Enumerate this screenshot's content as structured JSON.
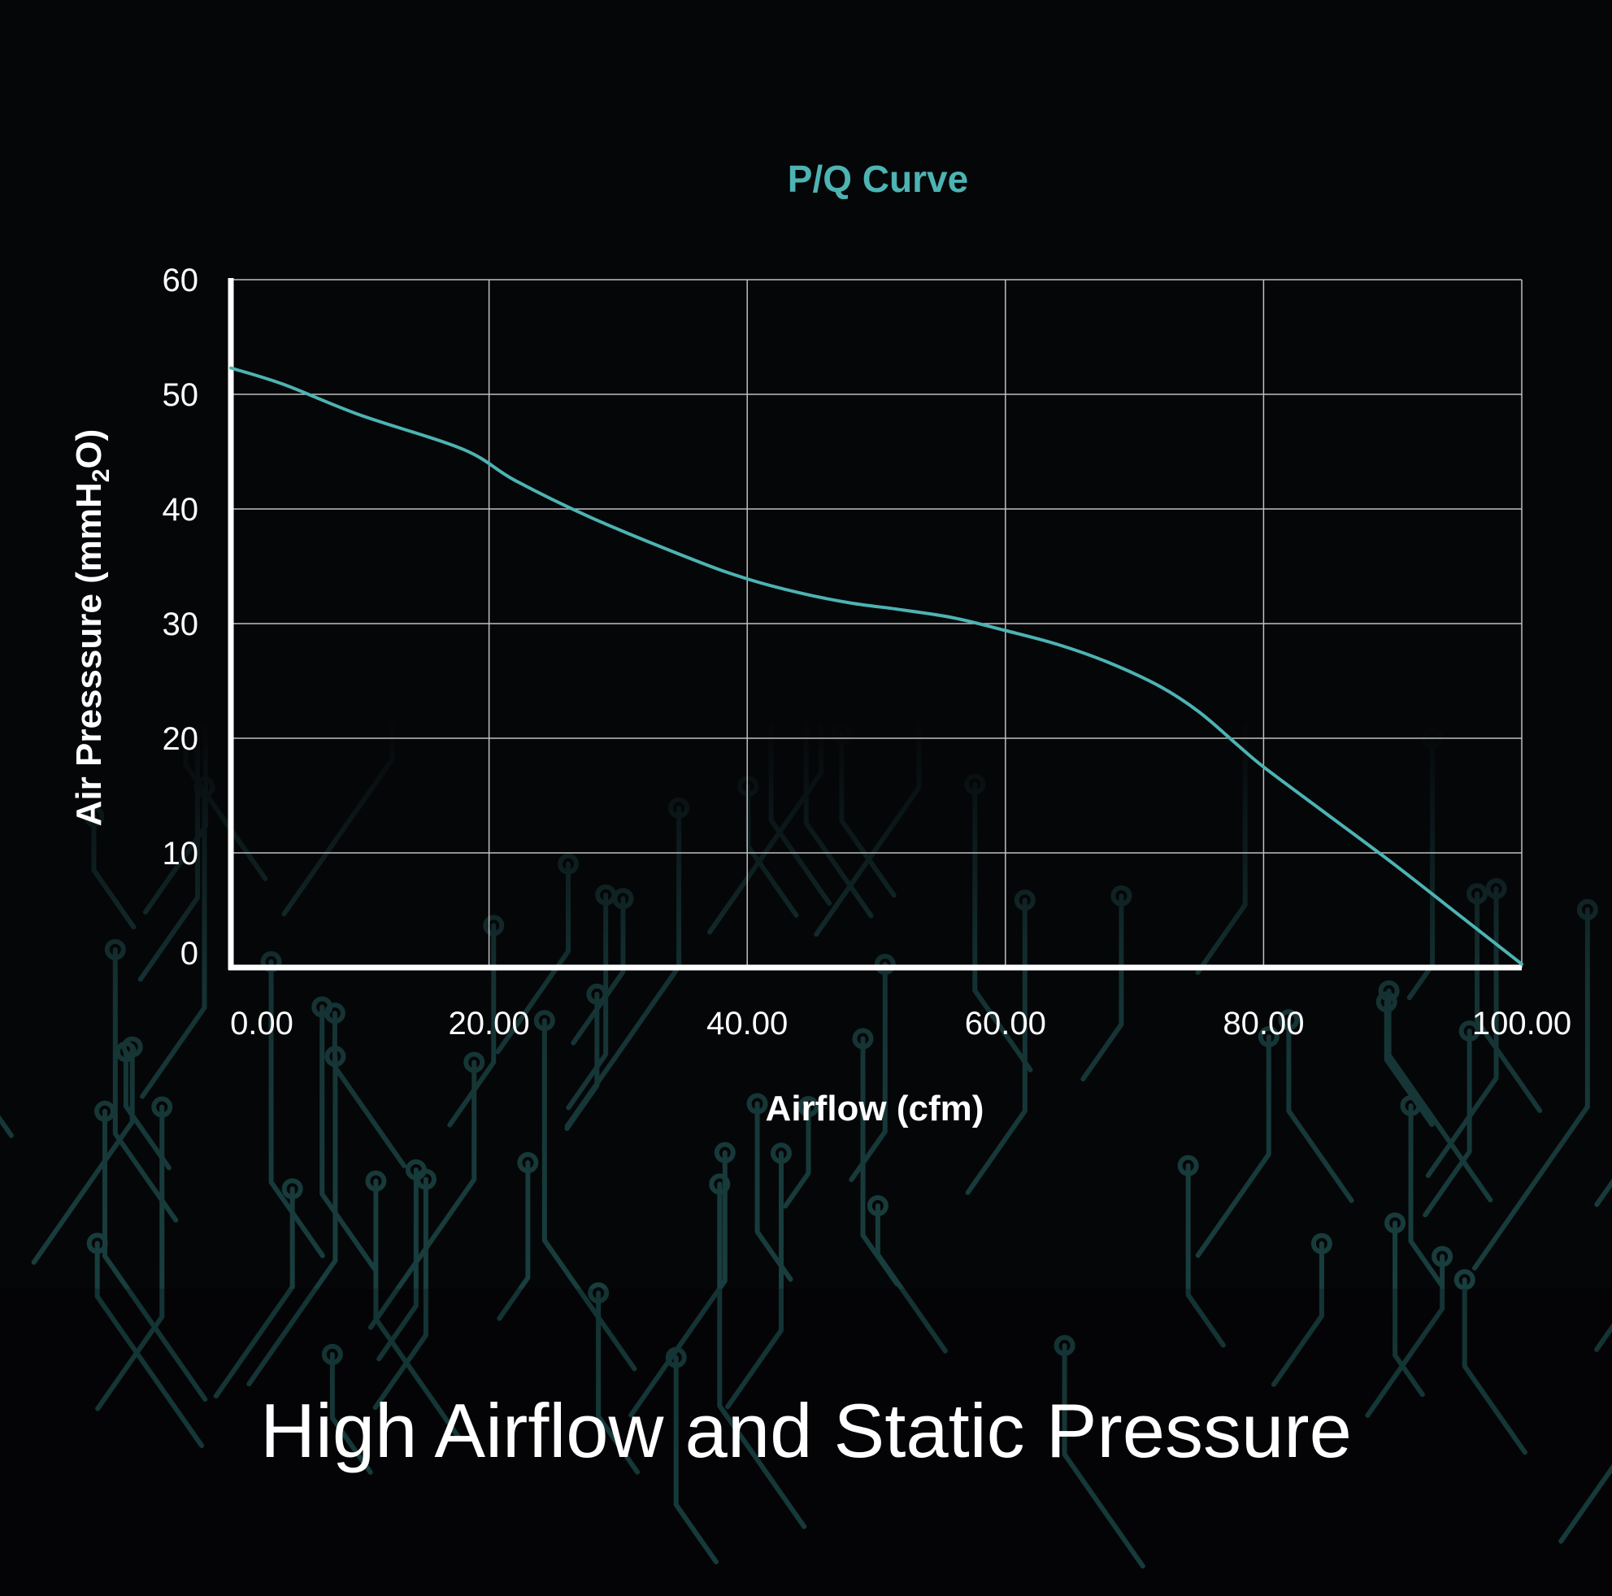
{
  "colors": {
    "background": "#050608",
    "accent": "#4db3b3",
    "grid": "#bfbfbf",
    "axis": "#ffffff",
    "text": "#ffffff",
    "circuit": "#1d4a4a"
  },
  "headline": "High Airflow and Static Pressure",
  "chart_data": {
    "type": "line",
    "title": "P/Q Curve",
    "xlabel": "Airflow (cfm)",
    "ylabel": {
      "before": "Air Presssure (mmH",
      "sub": "2",
      "after": "O)"
    },
    "xlim": [
      0,
      100
    ],
    "ylim": [
      0,
      60
    ],
    "x_ticks": [
      0,
      20,
      40,
      60,
      80,
      100
    ],
    "x_tick_labels": [
      "0.00",
      "20.00",
      "40.00",
      "60.00",
      "80.00",
      "100.00"
    ],
    "y_ticks": [
      0,
      10,
      20,
      30,
      40,
      50,
      60
    ],
    "y_tick_labels": [
      "0",
      "10",
      "20",
      "30",
      "40",
      "50",
      "60"
    ],
    "grid": true,
    "series": [
      {
        "color": "#4db3b3",
        "x": [
          0,
          4,
          10,
          18,
          22,
          28,
          36,
          40,
          44,
          48,
          52,
          56,
          60,
          64,
          68,
          72,
          75,
          78,
          80,
          85,
          90,
          95,
          100
        ],
        "y": [
          52.3,
          50.9,
          48.2,
          45.2,
          42.5,
          39.2,
          35.5,
          33.9,
          32.7,
          31.8,
          31.2,
          30.5,
          29.4,
          28.2,
          26.6,
          24.5,
          22.3,
          19.4,
          17.5,
          13.3,
          9.1,
          4.7,
          0.3
        ]
      }
    ]
  }
}
